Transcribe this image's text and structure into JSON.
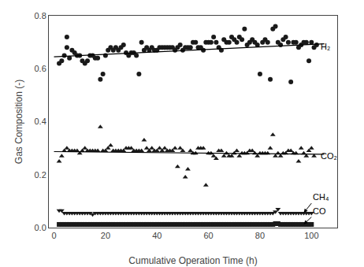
{
  "chart_data": {
    "type": "scatter",
    "xlabel": "Cumulative Operation Time (h)",
    "ylabel": "Gas Composition (-)",
    "xlim": [
      -2,
      110
    ],
    "ylim": [
      0.0,
      0.8
    ],
    "xticks": [
      0,
      20,
      40,
      60,
      80,
      100
    ],
    "yticks": [
      {
        "value": 0.0,
        "label": "0.0"
      },
      0.2,
      0.4,
      0.6,
      0.8
    ],
    "grid": false,
    "series": [
      {
        "type": "scatter",
        "marker": "circle",
        "color": "#1a1a1a",
        "x": [
          2,
          3,
          4,
          5,
          5,
          6,
          7,
          8,
          9,
          10,
          11,
          12,
          13,
          14,
          15,
          16,
          17,
          18,
          19,
          20,
          21,
          22,
          23,
          24,
          25,
          26,
          27,
          28,
          29,
          30,
          31,
          32,
          33,
          34,
          35,
          36,
          37,
          38,
          39,
          40,
          41,
          42,
          43,
          44,
          45,
          46,
          47,
          48,
          49,
          50,
          51,
          52,
          53,
          54,
          55,
          56,
          57,
          58,
          59,
          60,
          61,
          62,
          63,
          64,
          65,
          66,
          67,
          68,
          69,
          70,
          71,
          72,
          73,
          74,
          75,
          76,
          77,
          78,
          79,
          80,
          81,
          82,
          83,
          84,
          85,
          86,
          87,
          88,
          89,
          90,
          91,
          92,
          93,
          94,
          95,
          96,
          97,
          98,
          99,
          100,
          101,
          102
        ],
        "values": [
          0.62,
          0.63,
          0.65,
          0.72,
          0.68,
          0.64,
          0.67,
          0.66,
          0.65,
          0.65,
          0.63,
          0.62,
          0.63,
          0.65,
          0.65,
          0.64,
          0.64,
          0.56,
          0.58,
          0.65,
          0.67,
          0.68,
          0.67,
          0.68,
          0.67,
          0.68,
          0.69,
          0.66,
          0.65,
          0.66,
          0.66,
          0.65,
          0.58,
          0.7,
          0.67,
          0.68,
          0.67,
          0.68,
          0.67,
          0.67,
          0.68,
          0.68,
          0.68,
          0.68,
          0.68,
          0.68,
          0.67,
          0.68,
          0.69,
          0.67,
          0.68,
          0.68,
          0.68,
          0.7,
          0.7,
          0.68,
          0.68,
          0.67,
          0.7,
          0.7,
          0.7,
          0.72,
          0.7,
          0.68,
          0.67,
          0.71,
          0.7,
          0.7,
          0.72,
          0.71,
          0.7,
          0.72,
          0.71,
          0.75,
          0.69,
          0.7,
          0.71,
          0.7,
          0.69,
          0.58,
          0.7,
          0.71,
          0.7,
          0.56,
          0.75,
          0.76,
          0.7,
          0.69,
          0.71,
          0.72,
          0.7,
          0.55,
          0.7,
          0.7,
          0.68,
          0.69,
          0.7,
          0.7,
          0.63,
          0.7,
          0.68,
          0.69
        ]
      },
      {
        "type": "line",
        "color": "#000000",
        "x": [
          0.0,
          105.0
        ],
        "values": [
          0.645,
          0.694
        ]
      },
      {
        "type": "scatter",
        "marker": "triangle-up",
        "color": "#1a1a1a",
        "x": [
          2,
          3,
          4,
          5,
          6,
          7,
          8,
          9,
          10,
          11,
          12,
          13,
          14,
          15,
          16,
          17,
          18,
          19,
          20,
          21,
          22,
          23,
          24,
          25,
          26,
          27,
          28,
          29,
          30,
          31,
          32,
          33,
          34,
          35,
          36,
          37,
          38,
          39,
          40,
          41,
          42,
          43,
          44,
          45,
          46,
          47,
          48,
          49,
          50,
          51,
          52,
          53,
          54,
          55,
          56,
          57,
          58,
          59,
          60,
          61,
          62,
          63,
          64,
          65,
          66,
          67,
          68,
          69,
          70,
          71,
          72,
          73,
          74,
          75,
          76,
          77,
          78,
          79,
          80,
          81,
          82,
          83,
          84,
          85,
          86,
          87,
          88,
          89,
          90,
          91,
          92,
          93,
          94,
          95,
          96,
          97,
          98,
          99,
          100,
          101
        ],
        "values": [
          0.25,
          0.27,
          0.29,
          0.3,
          0.29,
          0.29,
          0.29,
          0.29,
          0.28,
          0.29,
          0.3,
          0.29,
          0.29,
          0.29,
          0.29,
          0.29,
          0.38,
          0.29,
          0.29,
          0.3,
          0.31,
          0.29,
          0.29,
          0.29,
          0.29,
          0.29,
          0.3,
          0.3,
          0.3,
          0.29,
          0.29,
          0.29,
          0.29,
          0.33,
          0.3,
          0.29,
          0.3,
          0.29,
          0.29,
          0.3,
          0.29,
          0.3,
          0.29,
          0.29,
          0.29,
          0.3,
          0.23,
          0.3,
          0.29,
          0.19,
          0.22,
          0.29,
          0.28,
          0.28,
          0.3,
          0.3,
          0.3,
          0.16,
          0.28,
          0.28,
          0.27,
          0.26,
          0.29,
          0.29,
          0.27,
          0.28,
          0.27,
          0.27,
          0.28,
          0.29,
          0.27,
          0.28,
          0.28,
          0.28,
          0.29,
          0.29,
          0.28,
          0.27,
          0.28,
          0.28,
          0.28,
          0.28,
          0.3,
          0.35,
          0.27,
          0.28,
          0.27,
          0.28,
          0.28,
          0.29,
          0.29,
          0.28,
          0.28,
          0.25,
          0.3,
          0.28,
          0.27,
          0.29,
          0.3,
          0.27
        ]
      },
      {
        "type": "line",
        "color": "#000000",
        "x": [
          0.0,
          105.0
        ],
        "values": [
          0.287,
          0.277
        ]
      },
      {
        "type": "scatter",
        "marker": "triangle-down",
        "color": "#1a1a1a",
        "x": [
          2,
          3,
          4,
          5,
          6,
          7,
          8,
          9,
          10,
          11,
          12,
          13,
          14,
          15,
          16,
          17,
          18,
          19,
          20,
          21,
          22,
          23,
          24,
          25,
          26,
          27,
          28,
          29,
          30,
          31,
          32,
          33,
          34,
          35,
          36,
          37,
          38,
          39,
          40,
          41,
          42,
          43,
          44,
          45,
          46,
          47,
          48,
          49,
          50,
          51,
          52,
          53,
          54,
          55,
          56,
          57,
          58,
          59,
          60,
          61,
          62,
          63,
          64,
          65,
          66,
          67,
          68,
          69,
          70,
          71,
          72,
          73,
          74,
          75,
          76,
          77,
          78,
          79,
          80,
          81,
          82,
          83,
          84,
          85,
          86,
          87,
          88,
          89,
          90,
          91,
          92,
          93,
          94,
          95,
          96,
          97,
          98,
          99,
          100
        ],
        "values": [
          0.065,
          0.065,
          0.055,
          0.055,
          0.055,
          0.055,
          0.055,
          0.055,
          0.055,
          0.055,
          0.055,
          0.055,
          0.055,
          0.05,
          0.055,
          0.055,
          0.055,
          0.055,
          0.055,
          0.055,
          0.055,
          0.055,
          0.055,
          0.055,
          0.055,
          0.055,
          0.055,
          0.055,
          0.055,
          0.055,
          0.055,
          0.055,
          0.055,
          0.055,
          0.055,
          0.055,
          0.055,
          0.055,
          0.055,
          0.055,
          0.055,
          0.055,
          0.055,
          0.055,
          0.055,
          0.055,
          0.055,
          0.055,
          0.055,
          0.055,
          0.055,
          0.055,
          0.055,
          0.055,
          0.055,
          0.055,
          0.055,
          0.055,
          0.055,
          0.055,
          0.055,
          0.055,
          0.055,
          0.055,
          0.055,
          0.055,
          0.055,
          0.055,
          0.055,
          0.055,
          0.055,
          0.055,
          0.055,
          0.055,
          0.055,
          0.055,
          0.055,
          0.055,
          0.055,
          0.055,
          0.055,
          0.055,
          0.055,
          0.055,
          0.06,
          0.07,
          0.055,
          0.055,
          0.055,
          0.055,
          0.055,
          0.055,
          0.055,
          0.055,
          0.055,
          0.055,
          0.055,
          0.055,
          0.055
        ]
      },
      {
        "type": "scatter",
        "marker": "square",
        "color": "#1a1a1a",
        "x": [
          2,
          3,
          4,
          5,
          6,
          7,
          8,
          9,
          10,
          11,
          12,
          13,
          14,
          15,
          16,
          17,
          18,
          19,
          20,
          21,
          22,
          23,
          24,
          25,
          26,
          27,
          28,
          29,
          30,
          31,
          32,
          33,
          34,
          35,
          36,
          37,
          38,
          39,
          40,
          41,
          42,
          43,
          44,
          45,
          46,
          47,
          48,
          49,
          50,
          51,
          52,
          53,
          54,
          55,
          56,
          57,
          58,
          59,
          60,
          61,
          62,
          63,
          64,
          65,
          66,
          67,
          68,
          69,
          70,
          71,
          72,
          73,
          74,
          75,
          76,
          77,
          78,
          79,
          80,
          81,
          82,
          83,
          84,
          85,
          86,
          87,
          88,
          89,
          90,
          91,
          92,
          93,
          94,
          95,
          96,
          97,
          98,
          99,
          100
        ],
        "values": [
          0.012,
          0.012,
          0.012,
          0.012,
          0.012,
          0.012,
          0.012,
          0.012,
          0.012,
          0.012,
          0.012,
          0.012,
          0.012,
          0.012,
          0.012,
          0.012,
          0.012,
          0.012,
          0.012,
          0.012,
          0.012,
          0.012,
          0.012,
          0.012,
          0.012,
          0.012,
          0.012,
          0.012,
          0.012,
          0.012,
          0.012,
          0.012,
          0.012,
          0.012,
          0.012,
          0.012,
          0.012,
          0.012,
          0.012,
          0.012,
          0.012,
          0.012,
          0.012,
          0.012,
          0.012,
          0.012,
          0.012,
          0.012,
          0.012,
          0.012,
          0.012,
          0.012,
          0.012,
          0.012,
          0.012,
          0.012,
          0.012,
          0.012,
          0.012,
          0.012,
          0.012,
          0.012,
          0.012,
          0.012,
          0.012,
          0.012,
          0.012,
          0.012,
          0.012,
          0.012,
          0.012,
          0.012,
          0.012,
          0.012,
          0.012,
          0.012,
          0.012,
          0.012,
          0.012,
          0.012,
          0.012,
          0.012,
          0.012,
          0.012,
          0.015,
          0.015,
          0.012,
          0.012,
          0.012,
          0.012,
          0.012,
          0.012,
          0.012,
          0.012,
          0.012,
          0.012,
          0.012,
          0.012,
          0.012
        ]
      }
    ],
    "annotations": [
      {
        "text": "H₂",
        "x": 103,
        "y": 0.685
      },
      {
        "text": "CO₂",
        "x": 103,
        "y": 0.272
      },
      {
        "text": "CH₄",
        "x": 97,
        "y": 0.056,
        "text_x": 100,
        "text_y": 0.092
      },
      {
        "text": "CO",
        "x": 97,
        "y": 0.013,
        "text_x": 100,
        "text_y": 0.04
      }
    ]
  }
}
